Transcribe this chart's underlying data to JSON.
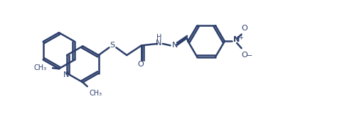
{
  "background_color": "#ffffff",
  "line_color": "#2c3e6b",
  "line_width": 1.8,
  "fig_width": 4.95,
  "fig_height": 1.67,
  "dpi": 100,
  "atoms": {
    "N_quinoline": "N",
    "S": "S",
    "O_carbonyl": "O",
    "N_hydrazone1": "N",
    "N_hydrazone2": "H\nN",
    "N_nitro": "N",
    "O_nitro1": "O",
    "O_nitro2": "O",
    "CH3_1": "CH₃",
    "CH3_2": "CH₃"
  },
  "quinoline_ring": {
    "benzene_fused": true
  }
}
